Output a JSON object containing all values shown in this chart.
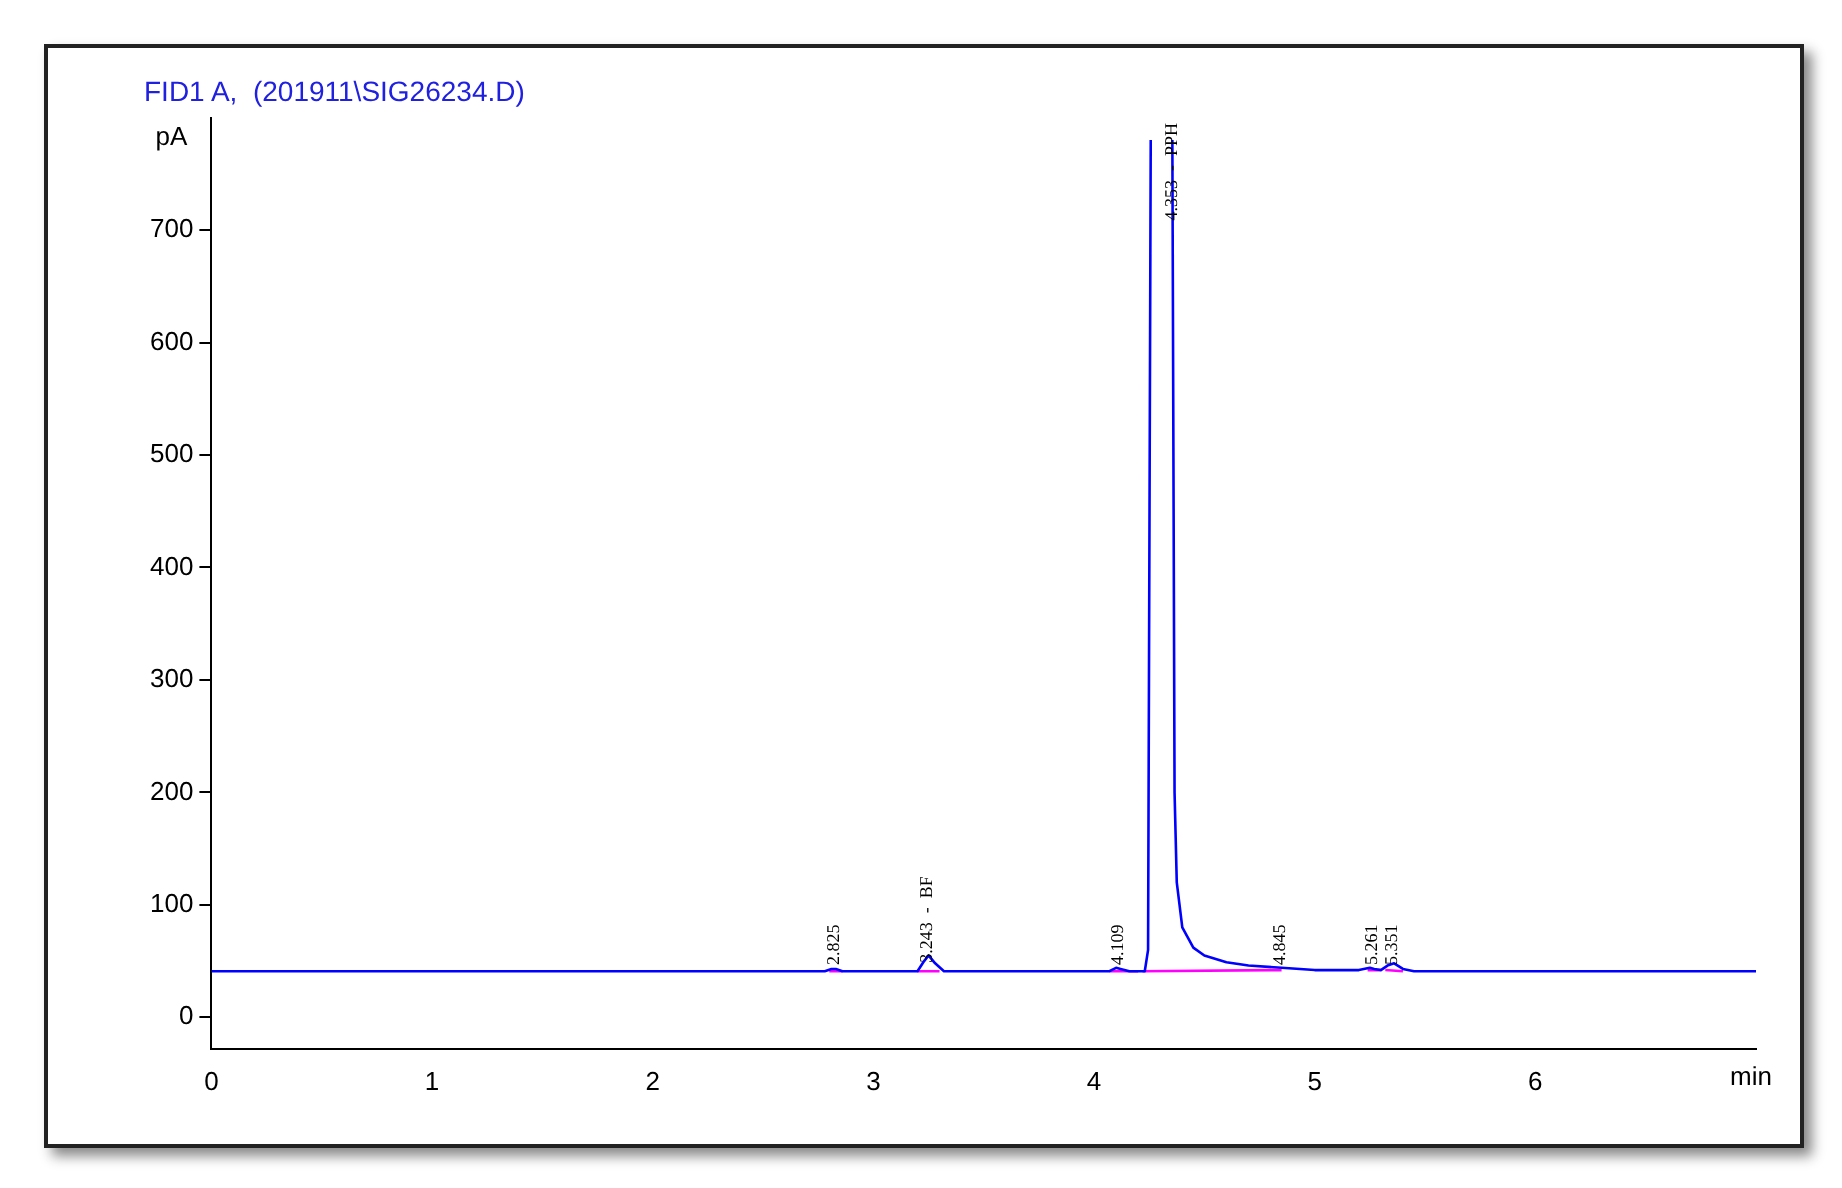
{
  "chart_data": {
    "type": "line",
    "title": "FID1 A,  (201911\\SIG26234.D)",
    "xlabel": "min",
    "ylabel": "pA",
    "xlim": [
      0,
      7
    ],
    "xticks": [
      0,
      1,
      2,
      3,
      4,
      5,
      6
    ],
    "ylim": [
      -28,
      800
    ],
    "yticks": [
      0,
      100,
      200,
      300,
      400,
      500,
      600,
      700
    ],
    "grid": false,
    "legend": false,
    "marker": "none",
    "line_style": "solid",
    "series": [
      {
        "color": "#0000ff",
        "x": [
          0,
          2.78,
          2.81,
          2.83,
          2.86,
          3.2,
          3.23,
          3.25,
          3.28,
          3.32,
          4.07,
          4.1,
          4.12,
          4.16,
          4.23,
          4.245,
          4.257,
          4.26,
          4.35,
          4.355,
          4.365,
          4.375,
          4.4,
          4.45,
          4.5,
          4.6,
          4.7,
          4.85,
          5.0,
          5.2,
          5.25,
          5.27,
          5.3,
          5.33,
          5.36,
          5.4,
          5.45,
          7
        ],
        "values": [
          41,
          41,
          43,
          43,
          41,
          41,
          50,
          55,
          48,
          41,
          41,
          44,
          43,
          41,
          41,
          60,
          780,
          null,
          null,
          780,
          200,
          120,
          80,
          62,
          55,
          49,
          46,
          44,
          42,
          42,
          44,
          43,
          42,
          46,
          48,
          43,
          41,
          41
        ]
      },
      {
        "color": "#ff00ff",
        "x": [
          2.8,
          2.86,
          2.87,
          3.2,
          3.3,
          3.31,
          4.07,
          4.2,
          4.21,
          4.22,
          4.85,
          4.86,
          5.24,
          5.3,
          5.31,
          5.32,
          5.4
        ],
        "values": [
          41,
          41,
          null,
          41,
          41,
          null,
          41,
          41,
          null,
          41,
          42,
          null,
          42,
          42,
          null,
          42,
          41
        ]
      }
    ],
    "annotations": [
      {
        "text": "2.825",
        "x": 2.825,
        "y": 43
      },
      {
        "text": "3.243  -  BF",
        "x": 3.243,
        "y": 45
      },
      {
        "text": "4.109",
        "x": 4.109,
        "y": 43
      },
      {
        "text": "4.353  -  PPH",
        "x": 4.353,
        "y": 705
      },
      {
        "text": "4.845",
        "x": 4.845,
        "y": 43
      },
      {
        "text": "5.261",
        "x": 5.261,
        "y": 43
      },
      {
        "text": "5.351",
        "x": 5.351,
        "y": 43
      }
    ]
  }
}
